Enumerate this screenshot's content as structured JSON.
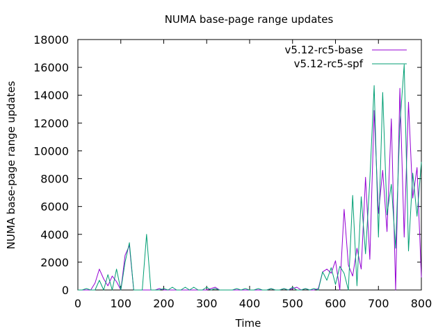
{
  "chart_data": {
    "type": "line",
    "title": "NUMA base-page range updates",
    "xlabel": "Time",
    "ylabel": "NUMA base-page range updates",
    "xlim": [
      0,
      800
    ],
    "ylim": [
      0,
      18000
    ],
    "xticks": [
      0,
      100,
      200,
      300,
      400,
      500,
      600,
      700,
      800
    ],
    "yticks": [
      0,
      2000,
      4000,
      6000,
      8000,
      10000,
      12000,
      14000,
      16000,
      18000
    ],
    "grid": false,
    "legend_position": "top-right",
    "series": [
      {
        "name": "v5.12-rc5-base",
        "color": "#9400d3",
        "x": [
          0,
          10,
          20,
          30,
          40,
          50,
          60,
          70,
          80,
          90,
          100,
          110,
          120,
          130,
          140,
          150,
          160,
          170,
          180,
          190,
          200,
          210,
          220,
          230,
          240,
          250,
          260,
          270,
          280,
          290,
          300,
          310,
          320,
          330,
          340,
          350,
          360,
          370,
          380,
          390,
          400,
          410,
          420,
          430,
          440,
          450,
          460,
          470,
          480,
          490,
          500,
          510,
          520,
          530,
          540,
          550,
          560,
          570,
          580,
          590,
          600,
          610,
          620,
          630,
          640,
          650,
          660,
          670,
          680,
          690,
          700,
          710,
          720,
          730,
          740,
          750,
          760,
          770,
          780,
          790,
          800
        ],
        "y": [
          0,
          0,
          0,
          0,
          500,
          1500,
          800,
          300,
          1000,
          600,
          0,
          2500,
          3200,
          0,
          0,
          0,
          0,
          0,
          0,
          100,
          0,
          0,
          0,
          0,
          0,
          0,
          0,
          0,
          0,
          0,
          0,
          100,
          200,
          0,
          0,
          0,
          0,
          0,
          0,
          0,
          0,
          0,
          0,
          0,
          0,
          100,
          0,
          0,
          100,
          0,
          100,
          200,
          0,
          100,
          0,
          0,
          100,
          1300,
          1500,
          1200,
          2100,
          0,
          5800,
          1800,
          1000,
          3000,
          1500,
          8100,
          2200,
          12900,
          5500,
          8600,
          4200,
          12300,
          0,
          14500,
          3800,
          13500,
          6600,
          8800,
          900
        ]
      },
      {
        "name": "v5.12-rc5-spf",
        "color": "#009e73",
        "x": [
          0,
          10,
          20,
          30,
          40,
          50,
          60,
          70,
          80,
          90,
          100,
          110,
          120,
          130,
          140,
          150,
          160,
          170,
          180,
          190,
          200,
          210,
          220,
          230,
          240,
          250,
          260,
          270,
          280,
          290,
          300,
          310,
          320,
          330,
          340,
          350,
          360,
          370,
          380,
          390,
          400,
          410,
          420,
          430,
          440,
          450,
          460,
          470,
          480,
          490,
          500,
          510,
          520,
          530,
          540,
          550,
          560,
          570,
          580,
          590,
          600,
          610,
          620,
          630,
          640,
          650,
          660,
          670,
          680,
          690,
          700,
          710,
          720,
          730,
          740,
          750,
          760,
          770,
          780,
          790,
          800
        ],
        "y": [
          0,
          0,
          100,
          0,
          0,
          700,
          0,
          1100,
          0,
          1500,
          0,
          2000,
          3400,
          0,
          0,
          0,
          4000,
          0,
          0,
          0,
          100,
          0,
          200,
          0,
          0,
          200,
          0,
          200,
          0,
          0,
          200,
          0,
          100,
          0,
          0,
          0,
          0,
          100,
          0,
          100,
          0,
          0,
          100,
          0,
          0,
          100,
          0,
          0,
          100,
          0,
          200,
          0,
          0,
          100,
          0,
          100,
          0,
          1300,
          700,
          1600,
          400,
          1700,
          1200,
          0,
          6800,
          300,
          6700,
          2600,
          7900,
          14700,
          3800,
          14200,
          5400,
          7600,
          3000,
          11900,
          16200,
          2800,
          8400,
          5300,
          9200
        ]
      }
    ]
  }
}
